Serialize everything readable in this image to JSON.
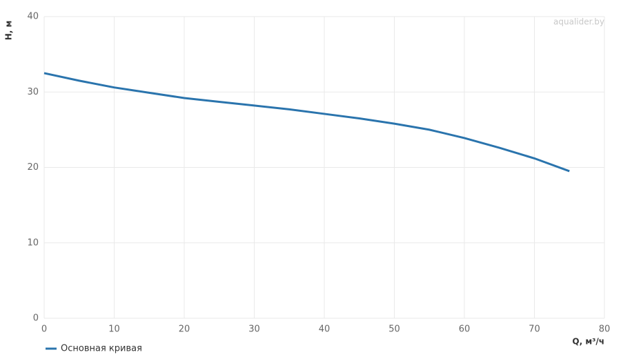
{
  "chart_data": {
    "type": "line",
    "x_label": "Q, м³/ч",
    "y_label": "H, м",
    "watermark": "aqualider.by",
    "x": [
      0,
      5,
      10,
      15,
      20,
      25,
      30,
      35,
      40,
      45,
      50,
      55,
      60,
      65,
      70,
      75
    ],
    "series": [
      {
        "name": "Основная кривая",
        "color": "#2a74ad",
        "values": [
          32.5,
          31.5,
          30.6,
          29.9,
          29.2,
          28.7,
          28.2,
          27.7,
          27.1,
          26.5,
          25.8,
          25.0,
          23.9,
          22.6,
          21.2,
          19.5
        ]
      }
    ],
    "xlim": [
      0,
      80
    ],
    "xticks": [
      0,
      10,
      20,
      30,
      40,
      50,
      60,
      70,
      80
    ],
    "ylim": [
      0,
      40
    ],
    "yticks": [
      0,
      10,
      20,
      30,
      40
    ],
    "grid": true
  }
}
